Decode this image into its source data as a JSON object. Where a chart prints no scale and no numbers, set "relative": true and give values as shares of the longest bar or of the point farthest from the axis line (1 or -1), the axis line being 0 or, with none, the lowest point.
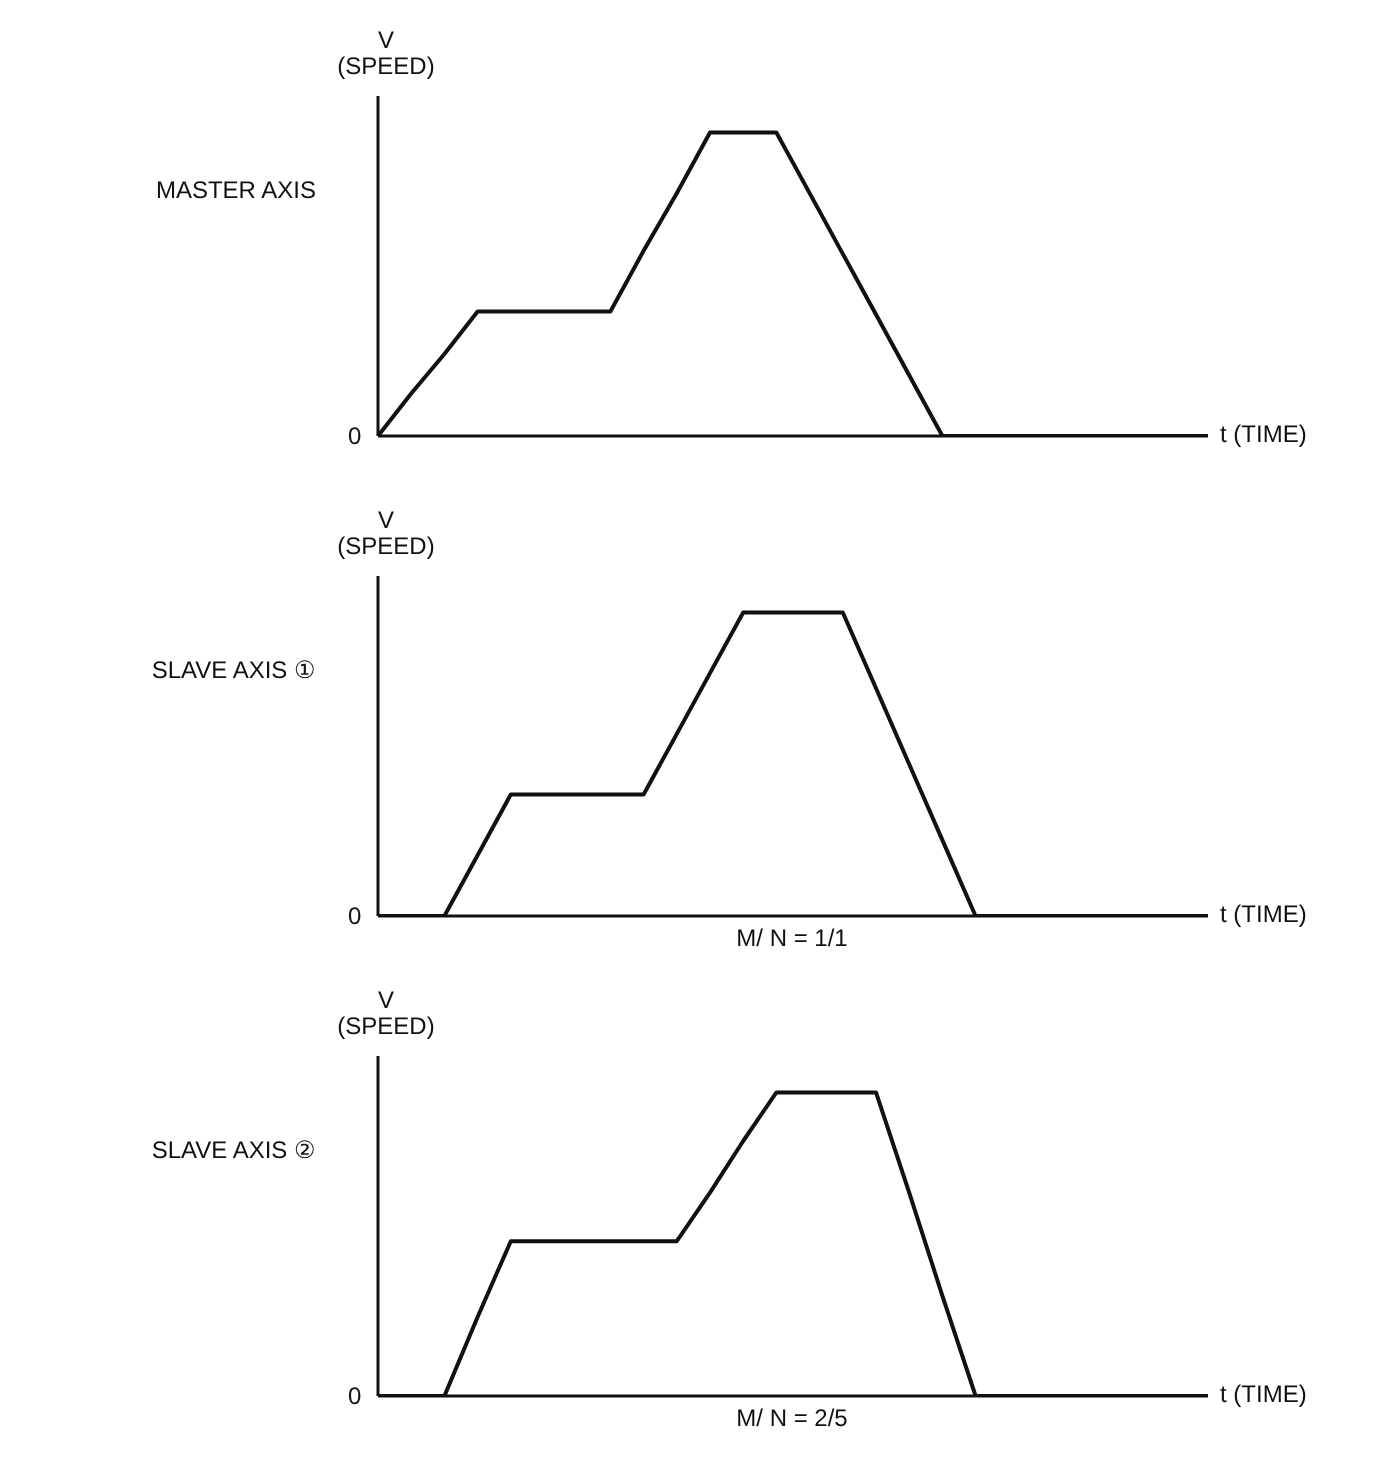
{
  "chart_data": [
    {
      "type": "line",
      "title": "MASTER AXIS",
      "ylabel": "V (SPEED)",
      "xlabel": "t (TIME)",
      "relative": true,
      "grid": false,
      "legend": false,
      "marker": "none",
      "line_style": "solid",
      "annotations": [
        "0"
      ],
      "categories": [
        null,
        null,
        null,
        null,
        null,
        null,
        null,
        null,
        null,
        null,
        null,
        null,
        null,
        null,
        null,
        null,
        null,
        null,
        null,
        null,
        null,
        null,
        null,
        null,
        null,
        null
      ],
      "series": [
        {
          "color": "#111111",
          "values": [
            0,
            0.14,
            0.27,
            0.41,
            0.41,
            0.41,
            0.41,
            0.41,
            0.61,
            0.8,
            1,
            1,
            1,
            0.8,
            0.6,
            0.4,
            0.2,
            0,
            0,
            0,
            0,
            0,
            0,
            0,
            0,
            0
          ]
        }
      ]
    },
    {
      "type": "line",
      "title": "SLAVE AXIS ①",
      "ylabel": "V (SPEED)",
      "xlabel": "t (TIME)",
      "relative": true,
      "grid": false,
      "legend": false,
      "marker": "none",
      "line_style": "solid",
      "annotations": [
        "0",
        "M/ N = 1/1"
      ],
      "categories": [
        null,
        null,
        null,
        null,
        null,
        null,
        null,
        null,
        null,
        null,
        null,
        null,
        null,
        null,
        null,
        null,
        null,
        null,
        null,
        null,
        null,
        null,
        null,
        null,
        null,
        null
      ],
      "series": [
        {
          "color": "#111111",
          "values": [
            0,
            0,
            0,
            0.2,
            0.4,
            0.4,
            0.4,
            0.4,
            0.4,
            0.6,
            0.8,
            1,
            1,
            1,
            1,
            0.75,
            0.5,
            0.25,
            0,
            0,
            0,
            0,
            0,
            0,
            0,
            0
          ]
        }
      ]
    },
    {
      "type": "line",
      "title": "SLAVE AXIS ②",
      "ylabel": "V (SPEED)",
      "xlabel": "t (TIME)",
      "relative": true,
      "grid": false,
      "legend": false,
      "marker": "none",
      "line_style": "solid",
      "annotations": [
        "0",
        "M/ N = 2/5"
      ],
      "categories": [
        null,
        null,
        null,
        null,
        null,
        null,
        null,
        null,
        null,
        null,
        null,
        null,
        null,
        null,
        null,
        null,
        null,
        null,
        null,
        null,
        null,
        null,
        null,
        null,
        null,
        null
      ],
      "series": [
        {
          "color": "#111111",
          "values": [
            0,
            0,
            0,
            0.26,
            0.51,
            0.51,
            0.51,
            0.51,
            0.51,
            0.51,
            0.67,
            0.84,
            1,
            1,
            1,
            1,
            0.67,
            0.33,
            0,
            0,
            0,
            0,
            0,
            0,
            0,
            0
          ]
        }
      ]
    }
  ]
}
